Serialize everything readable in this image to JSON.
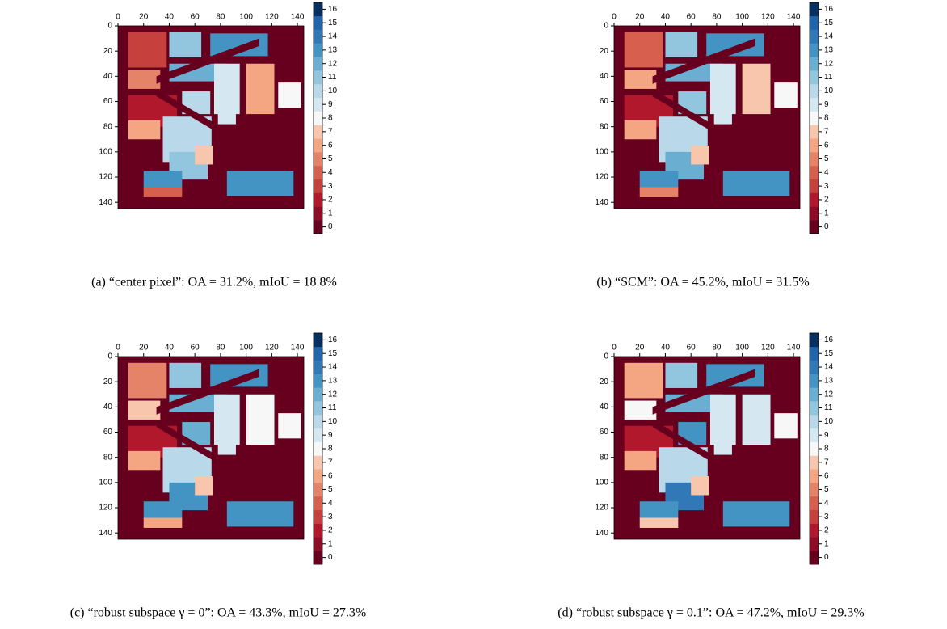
{
  "figure": {
    "xlim": [
      0,
      145
    ],
    "ylim": [
      0,
      145
    ],
    "xticks": [
      0,
      20,
      40,
      60,
      80,
      100,
      120,
      140
    ],
    "yticks": [
      0,
      20,
      40,
      60,
      80,
      100,
      120,
      140
    ],
    "colorbar": {
      "ticks": [
        0,
        1,
        2,
        3,
        4,
        5,
        6,
        7,
        8,
        9,
        10,
        11,
        12,
        13,
        14,
        15,
        16
      ],
      "colors": [
        "#67001f",
        "#8e0c25",
        "#b2182b",
        "#c6413e",
        "#d6604d",
        "#e58368",
        "#f4a582",
        "#f8c6ad",
        "#f7f7f7",
        "#d5e7f1",
        "#b9d9ea",
        "#92c5de",
        "#6aaed1",
        "#4393c3",
        "#3079b6",
        "#2166ac",
        "#053061"
      ]
    },
    "panels": [
      {
        "caption": "(a) “center pixel”: OA = 31.2%, mIoU = 18.8%"
      },
      {
        "caption": "(b) “SCM”: OA = 45.2%, mIoU = 31.5%"
      },
      {
        "caption": "(c) “robust subspace γ = 0”: OA = 43.3%, mIoU = 27.3%"
      },
      {
        "caption": "(d) “robust subspace γ = 0.1”: OA = 47.2%, mIoU = 29.3%"
      }
    ]
  }
}
